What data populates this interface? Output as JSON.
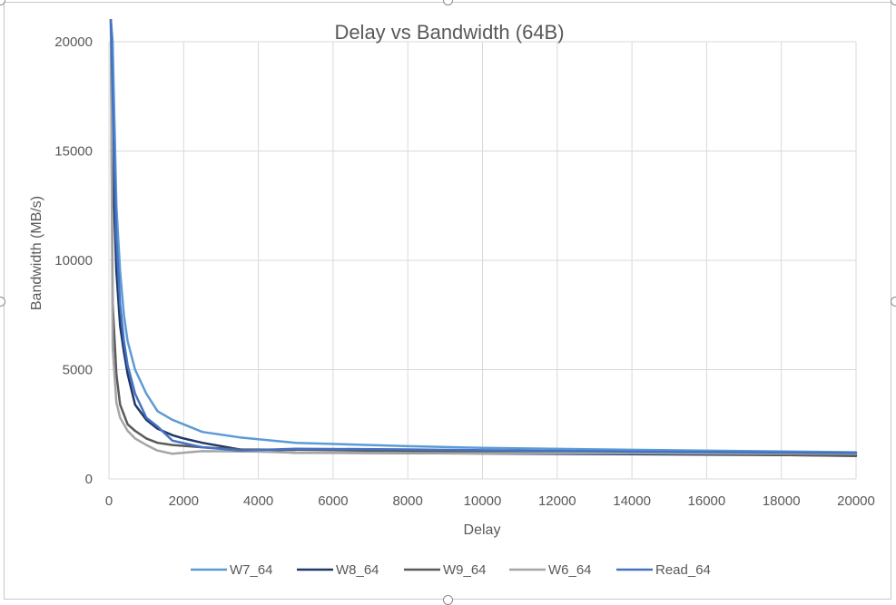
{
  "chart_data": {
    "type": "line",
    "title": "Delay vs Bandwidth (64B)",
    "xlabel": "Delay",
    "ylabel": "Bandwidth (MB/s)",
    "xlim": [
      0,
      20000
    ],
    "ylim": [
      0,
      20000
    ],
    "xticks": [
      "0",
      "2000",
      "4000",
      "6000",
      "8000",
      "10000",
      "12000",
      "14000",
      "16000",
      "18000",
      "20000"
    ],
    "yticks": [
      "0",
      "5000",
      "10000",
      "15000",
      "20000"
    ],
    "grid": true,
    "legend_position": "bottom",
    "series": [
      {
        "name": "W7_64",
        "color": "#5b9bd5",
        "points": [
          [
            50,
            21000
          ],
          [
            100,
            20000
          ],
          [
            200,
            12500
          ],
          [
            300,
            9500
          ],
          [
            400,
            7500
          ],
          [
            500,
            6300
          ],
          [
            700,
            5000
          ],
          [
            1000,
            3900
          ],
          [
            1300,
            3100
          ],
          [
            1700,
            2700
          ],
          [
            2000,
            2500
          ],
          [
            2500,
            2150
          ],
          [
            3500,
            1900
          ],
          [
            5000,
            1650
          ],
          [
            8000,
            1500
          ],
          [
            10000,
            1420
          ],
          [
            14000,
            1330
          ],
          [
            20000,
            1220
          ]
        ]
      },
      {
        "name": "W8_64",
        "color": "#203864",
        "points": [
          [
            50,
            21000
          ],
          [
            100,
            14500
          ],
          [
            200,
            9500
          ],
          [
            300,
            7000
          ],
          [
            400,
            5800
          ],
          [
            500,
            4800
          ],
          [
            700,
            3400
          ],
          [
            1000,
            2700
          ],
          [
            1300,
            2300
          ],
          [
            1700,
            2000
          ],
          [
            2000,
            1850
          ],
          [
            2500,
            1650
          ],
          [
            3500,
            1350
          ],
          [
            4000,
            1280
          ],
          [
            5000,
            1200
          ],
          [
            8000,
            1180
          ],
          [
            14000,
            1130
          ],
          [
            20000,
            1070
          ]
        ]
      },
      {
        "name": "W9_64",
        "color": "#595959",
        "points": [
          [
            50,
            21000
          ],
          [
            100,
            8000
          ],
          [
            200,
            4800
          ],
          [
            300,
            3400
          ],
          [
            500,
            2500
          ],
          [
            700,
            2200
          ],
          [
            1000,
            1850
          ],
          [
            1300,
            1650
          ],
          [
            1700,
            1550
          ],
          [
            2500,
            1450
          ],
          [
            3500,
            1350
          ],
          [
            5000,
            1330
          ],
          [
            8000,
            1280
          ],
          [
            14000,
            1180
          ],
          [
            20000,
            1050
          ]
        ]
      },
      {
        "name": "W6_64",
        "color": "#a5a5a5",
        "points": [
          [
            50,
            21000
          ],
          [
            100,
            6000
          ],
          [
            200,
            3500
          ],
          [
            300,
            2800
          ],
          [
            500,
            2200
          ],
          [
            700,
            1850
          ],
          [
            1000,
            1550
          ],
          [
            1300,
            1300
          ],
          [
            1700,
            1150
          ],
          [
            2000,
            1200
          ],
          [
            2500,
            1270
          ],
          [
            4000,
            1250
          ],
          [
            5000,
            1200
          ],
          [
            10000,
            1170
          ],
          [
            14000,
            1180
          ],
          [
            20000,
            1150
          ]
        ]
      },
      {
        "name": "Read_64",
        "color": "#4472c4",
        "points": [
          [
            50,
            21000
          ],
          [
            100,
            17500
          ],
          [
            200,
            11000
          ],
          [
            300,
            8000
          ],
          [
            400,
            6300
          ],
          [
            500,
            5200
          ],
          [
            700,
            3900
          ],
          [
            1000,
            2800
          ],
          [
            1300,
            2400
          ],
          [
            1700,
            1750
          ],
          [
            2500,
            1450
          ],
          [
            3500,
            1300
          ],
          [
            5000,
            1380
          ],
          [
            8000,
            1350
          ],
          [
            14000,
            1250
          ],
          [
            20000,
            1190
          ]
        ]
      }
    ]
  }
}
